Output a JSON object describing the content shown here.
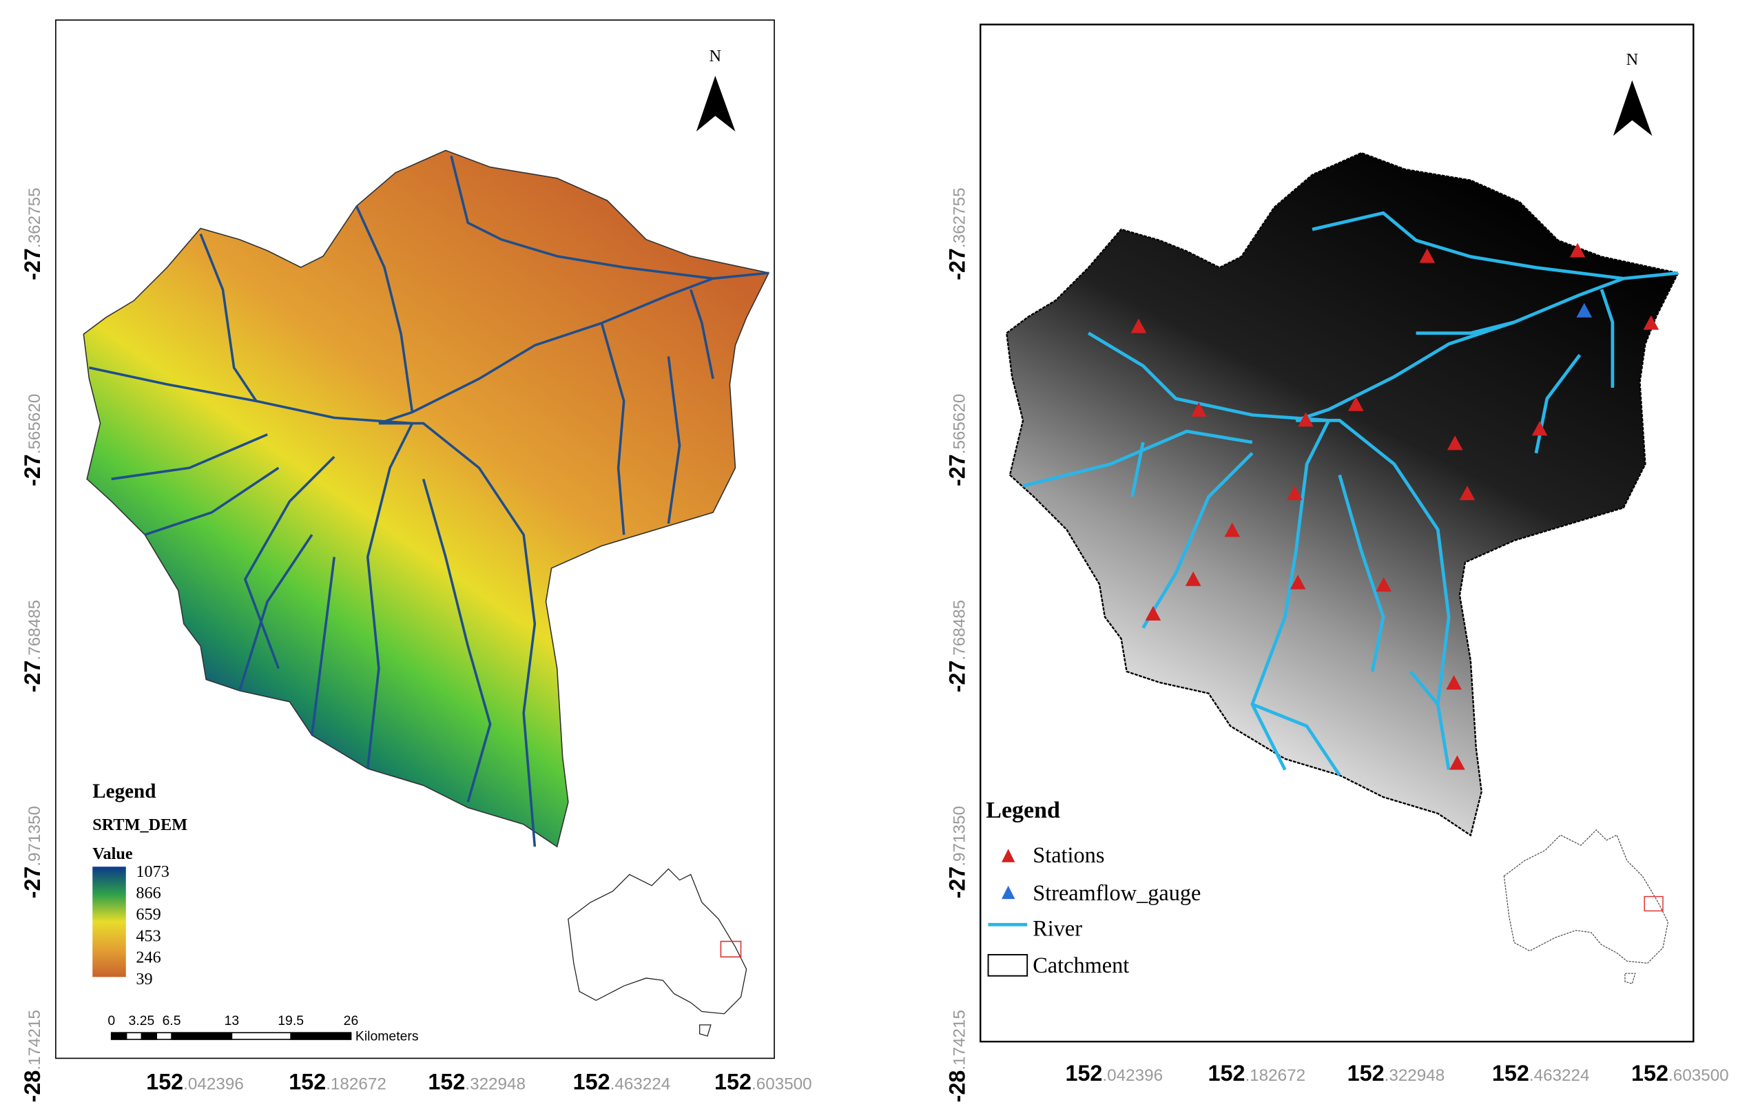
{
  "maps": [
    {
      "north": "N",
      "x_ticks": [
        {
          "deg": "152",
          "dec": ".042396"
        },
        {
          "deg": "152",
          "dec": ".182672"
        },
        {
          "deg": "152",
          "dec": ".322948"
        },
        {
          "deg": "152",
          "dec": ".463224"
        },
        {
          "deg": "152",
          "dec": ".603500"
        }
      ],
      "y_ticks": [
        {
          "deg": "-27",
          "dec": ".362755"
        },
        {
          "deg": "-27",
          "dec": ".565620"
        },
        {
          "deg": "-27",
          "dec": ".768485"
        },
        {
          "deg": "-27",
          "dec": ".971350"
        },
        {
          "deg": "-28",
          "dec": ".174215"
        }
      ],
      "legend": {
        "title": "Legend",
        "layer": "SRTM_DEM",
        "field": "Value",
        "classes": [
          "1073",
          "866",
          "659",
          "453",
          "246",
          "39"
        ]
      },
      "scale_bar": {
        "labels": [
          "0",
          "3.25",
          "6.5",
          "13",
          "19.5",
          "26"
        ],
        "unit": "Kilometers"
      }
    },
    {
      "north": "N",
      "x_ticks": [
        {
          "deg": "152",
          "dec": ".042396"
        },
        {
          "deg": "152",
          "dec": ".182672"
        },
        {
          "deg": "152",
          "dec": ".322948"
        },
        {
          "deg": "152",
          "dec": ".463224"
        },
        {
          "deg": "152",
          "dec": ".603500"
        }
      ],
      "y_ticks": [
        {
          "deg": "-27",
          "dec": ".362755"
        },
        {
          "deg": "-27",
          "dec": ".565620"
        },
        {
          "deg": "-27",
          "dec": ".768485"
        },
        {
          "deg": "-27",
          "dec": ".971350"
        },
        {
          "deg": "-28",
          "dec": ".174215"
        }
      ],
      "legend": {
        "title": "Legend",
        "items": [
          "Stations",
          "Streamflow_gauge",
          "River",
          "Catchment"
        ]
      }
    }
  ]
}
